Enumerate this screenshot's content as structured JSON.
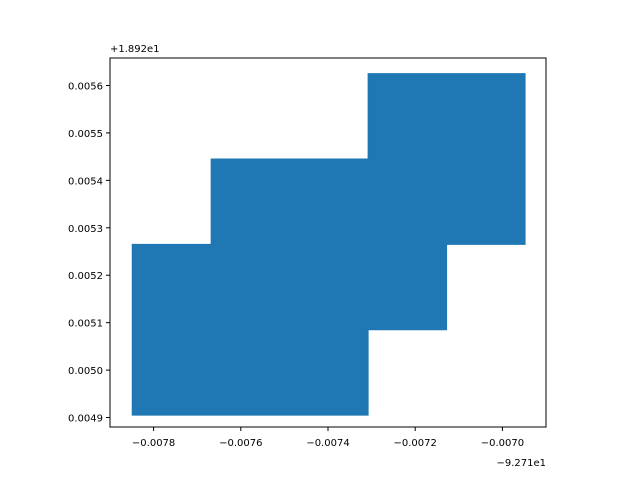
{
  "chart_data": {
    "type": "area",
    "title": "",
    "xlabel": "",
    "ylabel": "",
    "x_offset_label": "−9.271e1",
    "y_offset_label": "+1.892e1",
    "xlim": [
      -0.0079,
      -0.0069
    ],
    "ylim": [
      0.00488,
      0.005658
    ],
    "xticks": [
      -0.0078,
      -0.0076,
      -0.0074,
      -0.0072,
      -0.007
    ],
    "xtick_labels": [
      "−0.0078",
      "−0.0076",
      "−0.0074",
      "−0.0072",
      "−0.0070"
    ],
    "yticks": [
      0.0049,
      0.005,
      0.0051,
      0.0052,
      0.0053,
      0.0054,
      0.0055,
      0.0056
    ],
    "ytick_labels": [
      "0.0049",
      "0.0050",
      "0.0051",
      "0.0052",
      "0.0053",
      "0.0054",
      "0.0055",
      "0.0056"
    ],
    "grid": false,
    "series": [
      {
        "color": "#1f77b4",
        "polygon": [
          [
            -0.007849,
            0.004905
          ],
          [
            -0.007308,
            0.004905
          ],
          [
            -0.007308,
            0.005085
          ],
          [
            -0.007128,
            0.005085
          ],
          [
            -0.007128,
            0.005265
          ],
          [
            -0.006948,
            0.005265
          ],
          [
            -0.006948,
            0.005625
          ],
          [
            -0.007308,
            0.005625
          ],
          [
            -0.007308,
            0.005445
          ],
          [
            -0.007668,
            0.005445
          ],
          [
            -0.007668,
            0.005265
          ],
          [
            -0.007849,
            0.005265
          ]
        ]
      }
    ]
  }
}
